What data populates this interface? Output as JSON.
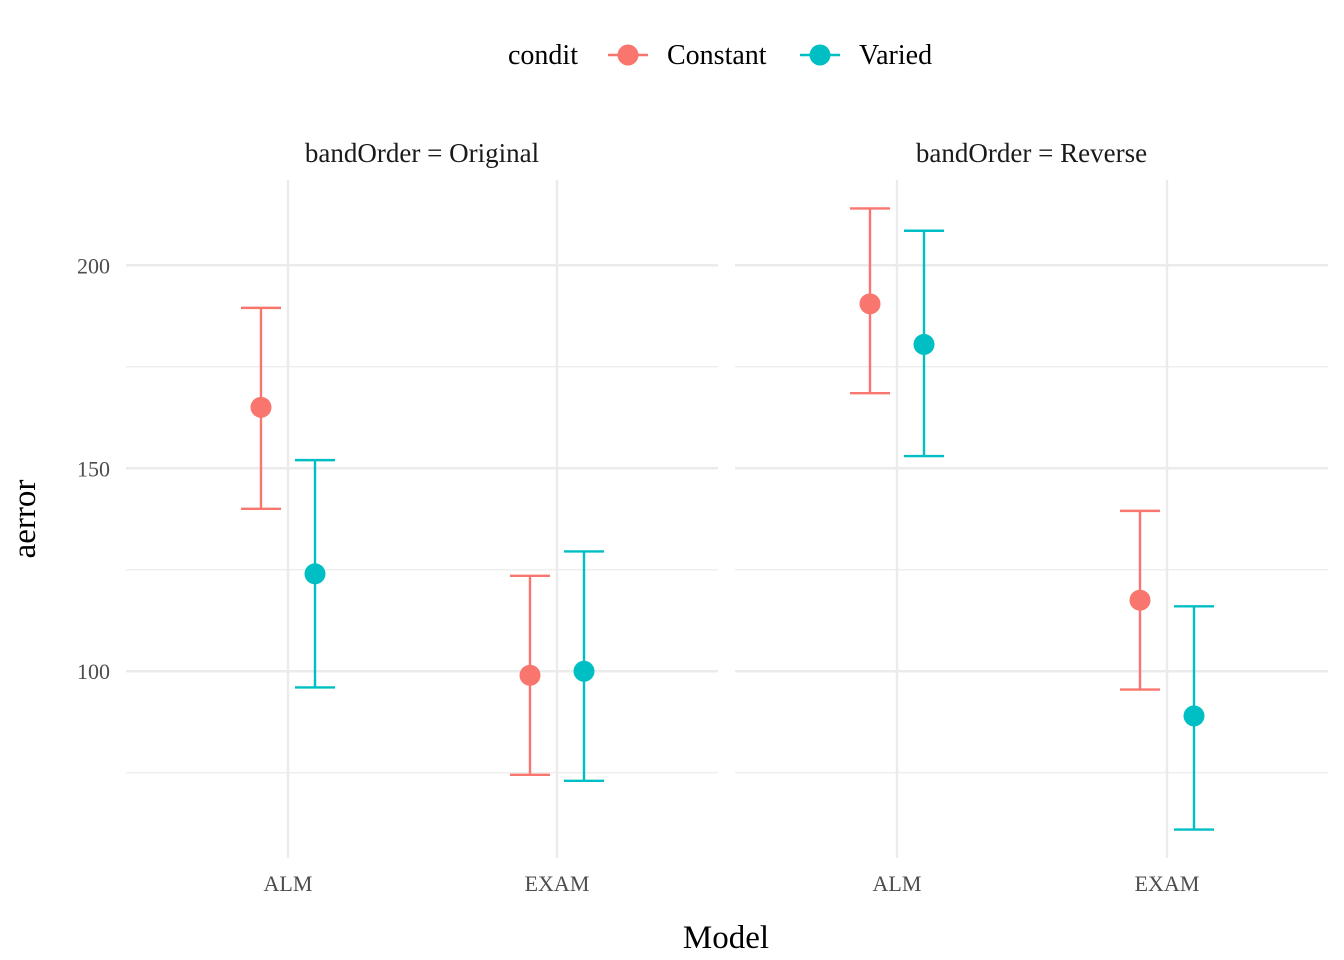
{
  "chart_data": {
    "type": "scatter",
    "subtype": "point-errorbar",
    "xlabel": "Model",
    "ylabel": "aerror",
    "legend": {
      "title": "condit",
      "position": "top",
      "entries": [
        {
          "name": "Constant",
          "color": "#F8766D"
        },
        {
          "name": "Varied",
          "color": "#00BFC4"
        }
      ]
    },
    "ylim": [
      54,
      221
    ],
    "yticks": [
      100,
      150,
      200
    ],
    "y_minor_ticks": [
      75,
      125,
      175
    ],
    "grid": true,
    "categories": [
      "ALM",
      "EXAM"
    ],
    "panels": [
      {
        "strip": "bandOrder = Original",
        "series": [
          {
            "name": "Constant",
            "points": [
              {
                "x": "ALM",
                "y": 165,
                "ymin": 140,
                "ymax": 189.5
              },
              {
                "x": "EXAM",
                "y": 99,
                "ymin": 74.5,
                "ymax": 123.5
              }
            ]
          },
          {
            "name": "Varied",
            "points": [
              {
                "x": "ALM",
                "y": 124,
                "ymin": 96,
                "ymax": 152
              },
              {
                "x": "EXAM",
                "y": 100,
                "ymin": 73,
                "ymax": 129.5
              }
            ]
          }
        ]
      },
      {
        "strip": "bandOrder = Reverse",
        "series": [
          {
            "name": "Constant",
            "points": [
              {
                "x": "ALM",
                "y": 190.5,
                "ymin": 168.5,
                "ymax": 214
              },
              {
                "x": "EXAM",
                "y": 117.5,
                "ymin": 95.5,
                "ymax": 139.5
              }
            ]
          },
          {
            "name": "Varied",
            "points": [
              {
                "x": "ALM",
                "y": 180.5,
                "ymin": 153,
                "ymax": 208.5
              },
              {
                "x": "EXAM",
                "y": 89,
                "ymin": 61,
                "ymax": 116
              }
            ]
          }
        ]
      }
    ]
  }
}
